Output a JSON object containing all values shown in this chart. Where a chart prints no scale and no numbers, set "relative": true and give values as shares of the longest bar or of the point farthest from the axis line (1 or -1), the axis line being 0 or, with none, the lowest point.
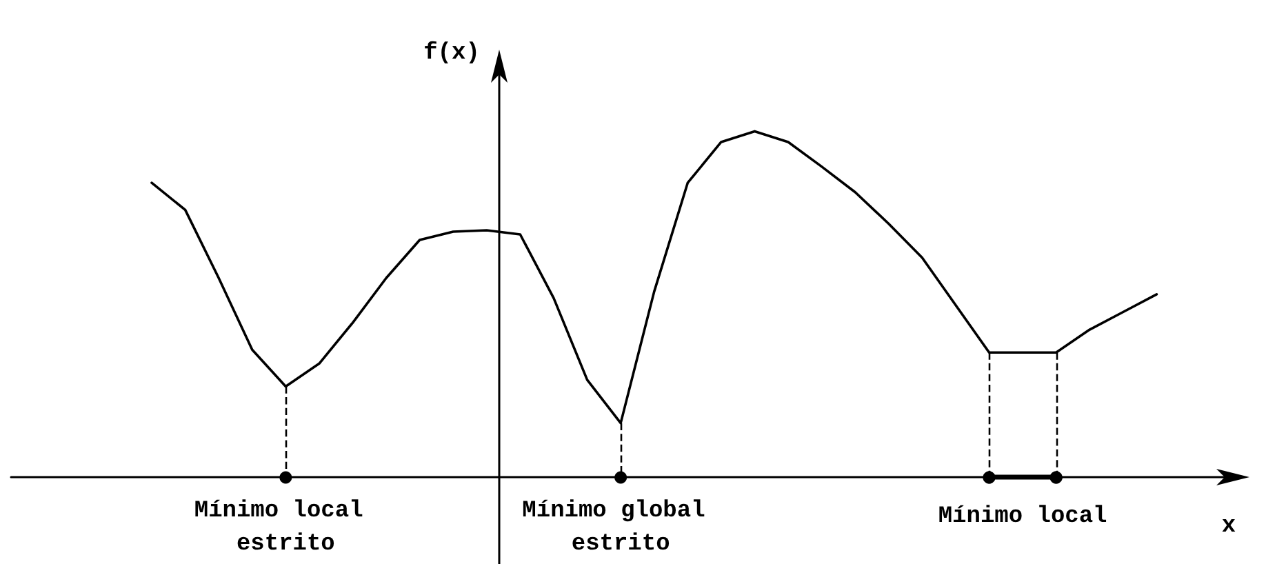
{
  "chart_data": {
    "type": "line",
    "relative": true,
    "xlabel": "x",
    "ylabel": "f(x)",
    "marker": "none",
    "line_style": "solid",
    "categories": [
      null,
      null,
      null,
      null,
      null,
      null,
      null,
      null,
      null,
      null,
      null,
      null,
      null,
      null,
      null,
      null,
      null,
      null,
      null,
      null,
      null,
      null,
      null,
      null,
      null,
      null,
      null,
      null,
      null,
      null,
      null
    ],
    "series": [
      {
        "color": "#000000",
        "values": [
          0.851,
          0.773,
          0.576,
          0.369,
          0.263,
          0.329,
          0.447,
          0.576,
          0.686,
          0.71,
          0.714,
          0.702,
          0.518,
          0.282,
          0.157,
          0.537,
          0.851,
          0.969,
          1,
          0.969,
          0.898,
          0.824,
          0.733,
          0.635,
          0.498,
          0.361,
          0.361,
          0.361,
          0.427,
          0.478,
          0.529
        ]
      }
    ],
    "annotations": [
      "Mínimo local estrito",
      "Mínimo global estrito",
      "Mínimo local"
    ]
  }
}
